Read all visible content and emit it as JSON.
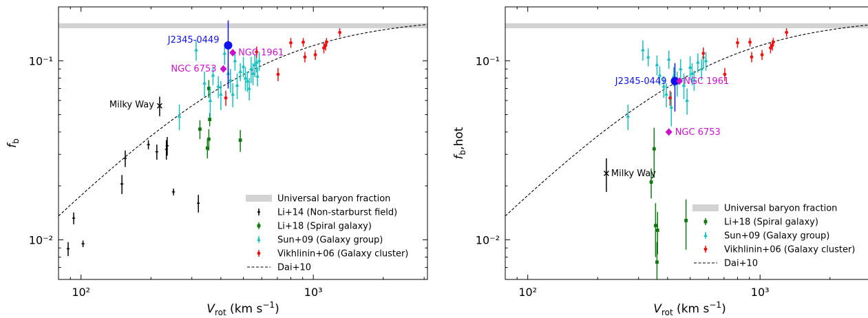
{
  "colors": {
    "li14": "#000000",
    "li18": "#117711",
    "sun09": "#17bfbf",
    "vikh06": "#ee1111",
    "target": "#1111ee",
    "ngc": "#cc11cc",
    "band": "#d3d3d3",
    "model": "#000000"
  },
  "chart_data": [
    {
      "type": "scatter",
      "xlabel": "Vrot (km s−1)",
      "ylabel": "fb",
      "xscale": "log",
      "yscale": "log",
      "xlim": [
        80,
        3100
      ],
      "ylim": [
        0.006,
        0.2
      ],
      "xticks": [
        {
          "v": 100,
          "label": "10²"
        },
        {
          "v": 1000,
          "label": "10³"
        }
      ],
      "yticks": [
        {
          "v": 0.01,
          "label": "10⁻²"
        },
        {
          "v": 0.1,
          "label": "10⁻¹"
        }
      ],
      "universal_band": [
        0.152,
        0.162
      ],
      "legend": {
        "placement": "lower-right",
        "entries": [
          {
            "label": "Universal baryon fraction",
            "kind": "band"
          },
          {
            "label": "Li+14 (Non-starburst field)",
            "kind": "li14"
          },
          {
            "label": "Li+18 (Spiral galaxy)",
            "kind": "li18"
          },
          {
            "label": "Sun+09 (Galaxy group)",
            "kind": "sun09"
          },
          {
            "label": "Vikhlinin+06 (Galaxy cluster)",
            "kind": "vikh06"
          },
          {
            "label": "Dai+10",
            "kind": "model"
          }
        ]
      },
      "series": [
        {
          "name": "Li+14 (Non-starburst field)",
          "key": "li14",
          "marker": "plus",
          "points": [
            [
              88,
              0.0089,
              0.0008
            ],
            [
              93,
              0.0132,
              0.001
            ],
            [
              102,
              0.0095,
              0.0004
            ],
            [
              150,
              0.0205,
              0.0025
            ],
            [
              155,
              0.0285,
              0.003
            ],
            [
              195,
              0.034,
              0.002
            ],
            [
              212,
              0.031,
              0.003
            ],
            [
              233,
              0.032,
              0.004
            ],
            [
              235,
              0.0335,
              0.004
            ],
            [
              250,
              0.0185,
              0.0008
            ],
            [
              320,
              0.016,
              0.0018
            ]
          ]
        },
        {
          "name": "Li+18 (Spiral galaxy)",
          "key": "li18",
          "marker": "square",
          "points": [
            [
              325,
              0.0415,
              0.005
            ],
            [
              350,
              0.0325,
              0.004
            ],
            [
              355,
              0.0365,
              0.005
            ],
            [
              358,
              0.047,
              0.004
            ],
            [
              355,
              0.07,
              0.008
            ],
            [
              485,
              0.036,
              0.005
            ]
          ]
        },
        {
          "name": "Sun+09 (Galaxy group)",
          "key": "sun09",
          "marker": "triangle",
          "points": [
            [
              265,
              0.049,
              0.008
            ],
            [
              313,
              0.115,
              0.015
            ],
            [
              340,
              0.075,
              0.012
            ],
            [
              360,
              0.06,
              0.012
            ],
            [
              370,
              0.083,
              0.01
            ],
            [
              390,
              0.072,
              0.01
            ],
            [
              400,
              0.065,
              0.012
            ],
            [
              415,
              0.11,
              0.015
            ],
            [
              430,
              0.085,
              0.01
            ],
            [
              440,
              0.078,
              0.012
            ],
            [
              450,
              0.065,
              0.01
            ],
            [
              460,
              0.1,
              0.012
            ],
            [
              470,
              0.073,
              0.012
            ],
            [
              485,
              0.087,
              0.01
            ],
            [
              500,
              0.093,
              0.012
            ],
            [
              510,
              0.08,
              0.012
            ],
            [
              520,
              0.077,
              0.01
            ],
            [
              530,
              0.07,
              0.01
            ],
            [
              540,
              0.09,
              0.015
            ],
            [
              550,
              0.085,
              0.012
            ],
            [
              560,
              0.095,
              0.014
            ],
            [
              570,
              0.098,
              0.012
            ],
            [
              575,
              0.082,
              0.01
            ],
            [
              585,
              0.1,
              0.012
            ]
          ]
        },
        {
          "name": "Vikhlinin+06 (Galaxy cluster)",
          "key": "vikh06",
          "marker": "circle",
          "points": [
            [
              420,
              0.062,
              0.006
            ],
            [
              570,
              0.112,
              0.008
            ],
            [
              705,
              0.084,
              0.007
            ],
            [
              800,
              0.126,
              0.008
            ],
            [
              905,
              0.127,
              0.007
            ],
            [
              920,
              0.105,
              0.007
            ],
            [
              1020,
              0.108,
              0.007
            ],
            [
              1110,
              0.118,
              0.008
            ],
            [
              1130,
              0.122,
              0.008
            ],
            [
              1140,
              0.127,
              0.007
            ],
            [
              1300,
              0.144,
              0.008
            ]
          ]
        },
        {
          "name": "Dai+10",
          "key": "model",
          "marker": "line",
          "fmax": 0.176,
          "vc": 540,
          "slope": 1.3
        }
      ],
      "special": [
        {
          "label": "Milky Way",
          "marker": "x",
          "colorKey": "li14",
          "v": 218,
          "f": 0.056,
          "err": 0.007,
          "label_side": "left"
        },
        {
          "label": "J2345-0449",
          "marker": "bigcircle",
          "colorKey": "target",
          "v": 430,
          "f": 0.122,
          "err_lo": 0.07,
          "err_hi": 0.168,
          "label_side": "left"
        },
        {
          "label": "NGC 1961",
          "marker": "diamond",
          "colorKey": "ngc",
          "v": 450,
          "f": 0.111,
          "label_side": "right"
        },
        {
          "label": "NGC 6753",
          "marker": "diamond",
          "colorKey": "ngc",
          "v": 410,
          "f": 0.09,
          "label_side": "left"
        }
      ]
    },
    {
      "type": "scatter",
      "xlabel": "Vrot (km s−1)",
      "ylabel": "fb,hot",
      "xscale": "log",
      "yscale": "log",
      "xlim": [
        80,
        3100
      ],
      "ylim": [
        0.006,
        0.2
      ],
      "xticks": [
        {
          "v": 100,
          "label": "10²"
        },
        {
          "v": 1000,
          "label": "10³"
        }
      ],
      "yticks": [
        {
          "v": 0.01,
          "label": "10⁻²"
        },
        {
          "v": 0.1,
          "label": "10⁻¹"
        }
      ],
      "universal_band": [
        0.152,
        0.162
      ],
      "legend": {
        "placement": "lower-right",
        "entries": [
          {
            "label": "Universal baryon fraction",
            "kind": "band"
          },
          {
            "label": "Li+18 (Spiral galaxy)",
            "kind": "li18"
          },
          {
            "label": "Sun+09 (Galaxy group)",
            "kind": "sun09"
          },
          {
            "label": "Vikhlinin+06 (Galaxy cluster)",
            "kind": "vikh06"
          },
          {
            "label": "Dai+10",
            "kind": "model"
          }
        ]
      },
      "series": [
        {
          "name": "Li+18 (Spiral galaxy)",
          "key": "li18",
          "marker": "square",
          "points": [
            [
              340,
              0.021,
              0.004
            ],
            [
              350,
              0.0322,
              0.01
            ],
            [
              355,
              0.012,
              0.004
            ],
            [
              360,
              0.0075,
              0.0022
            ],
            [
              362,
              0.0113,
              0.003
            ],
            [
              480,
              0.0128,
              0.004
            ]
          ]
        },
        {
          "name": "Sun+09 (Galaxy group)",
          "key": "sun09",
          "marker": "triangle",
          "points": [
            [
              270,
              0.049,
              0.008
            ],
            [
              313,
              0.115,
              0.015
            ],
            [
              330,
              0.105,
              0.012
            ],
            [
              360,
              0.095,
              0.012
            ],
            [
              370,
              0.083,
              0.01
            ],
            [
              385,
              0.072,
              0.01
            ],
            [
              395,
              0.065,
              0.01
            ],
            [
              405,
              0.102,
              0.012
            ],
            [
              415,
              0.055,
              0.012
            ],
            [
              425,
              0.082,
              0.01
            ],
            [
              440,
              0.075,
              0.012
            ],
            [
              455,
              0.09,
              0.012
            ],
            [
              470,
              0.073,
              0.012
            ],
            [
              485,
              0.06,
              0.01
            ],
            [
              500,
              0.092,
              0.014
            ],
            [
              510,
              0.085,
              0.012
            ],
            [
              520,
              0.078,
              0.01
            ],
            [
              540,
              0.098,
              0.012
            ],
            [
              560,
              0.09,
              0.012
            ],
            [
              570,
              0.105,
              0.014
            ],
            [
              585,
              0.1,
              0.012
            ]
          ]
        },
        {
          "name": "Vikhlinin+06 (Galaxy cluster)",
          "key": "vikh06",
          "marker": "circle",
          "points": [
            [
              410,
              0.062,
              0.006
            ],
            [
              570,
              0.11,
              0.008
            ],
            [
              705,
              0.084,
              0.007
            ],
            [
              800,
              0.126,
              0.008
            ],
            [
              905,
              0.127,
              0.007
            ],
            [
              920,
              0.105,
              0.007
            ],
            [
              1020,
              0.108,
              0.007
            ],
            [
              1110,
              0.118,
              0.008
            ],
            [
              1130,
              0.122,
              0.008
            ],
            [
              1140,
              0.127,
              0.007
            ],
            [
              1300,
              0.144,
              0.008
            ]
          ]
        },
        {
          "name": "Dai+10",
          "key": "model",
          "marker": "line",
          "fmax": 0.176,
          "vc": 540,
          "slope": 1.3
        }
      ],
      "special": [
        {
          "label": "Milky Way",
          "marker": "x",
          "colorKey": "li14",
          "v": 218,
          "f": 0.0235,
          "err": 0.005,
          "label_side": "right"
        },
        {
          "label": "J2345-0449",
          "marker": "bigcircle",
          "colorKey": "target",
          "v": 430,
          "f": 0.077,
          "err_lo": 0.052,
          "err_hi": 0.097,
          "label_side": "left"
        },
        {
          "label": "NGC 1961",
          "marker": "diamond",
          "colorKey": "ngc",
          "v": 450,
          "f": 0.077,
          "label_side": "right"
        },
        {
          "label": "NGC 6753",
          "marker": "diamond",
          "colorKey": "ngc",
          "v": 405,
          "f": 0.04,
          "label_side": "right"
        }
      ]
    }
  ]
}
